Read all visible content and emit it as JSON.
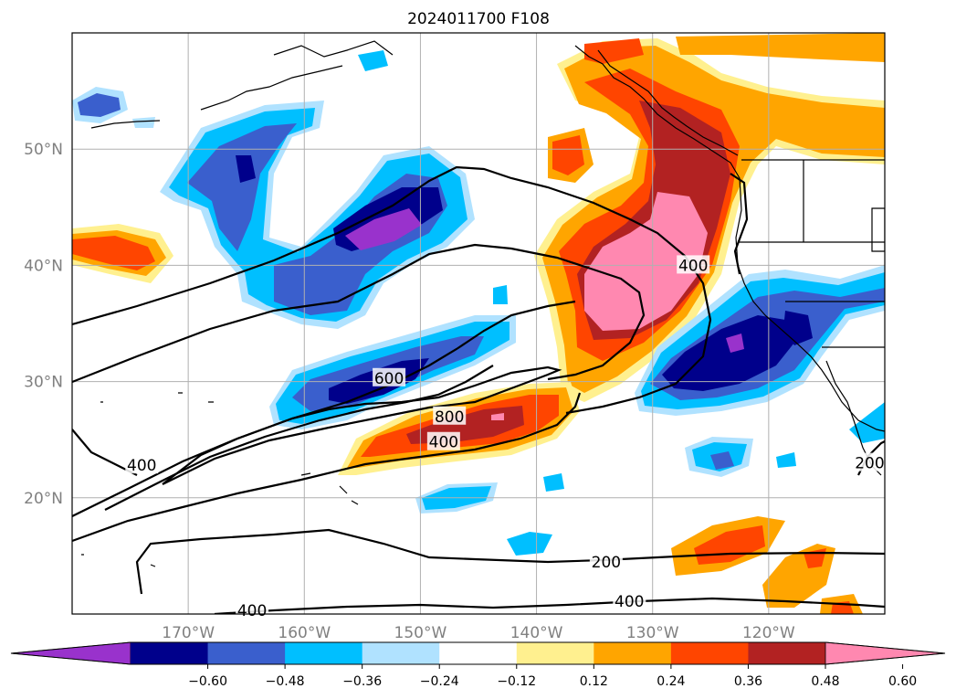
{
  "title": "2024011700 F108",
  "map": {
    "lon_range": [
      -180,
      -110
    ],
    "lat_range": [
      10,
      60
    ],
    "gridlines": true,
    "lon_ticks": [
      {
        "lon": -170,
        "label": "170°W"
      },
      {
        "lon": -160,
        "label": "160°W"
      },
      {
        "lon": -150,
        "label": "150°W"
      },
      {
        "lon": -140,
        "label": "140°W"
      },
      {
        "lon": -130,
        "label": "130°W"
      },
      {
        "lon": -120,
        "label": "120°W"
      }
    ],
    "lat_ticks": [
      {
        "lat": 20,
        "label": "20°N"
      },
      {
        "lat": 30,
        "label": "30°N"
      },
      {
        "lat": 40,
        "label": "40°N"
      },
      {
        "lat": 50,
        "label": "50°N"
      }
    ],
    "contour_labels": [
      {
        "text": "400",
        "lon": -126.5,
        "lat": 40.0
      },
      {
        "text": "600",
        "lon": -152.7,
        "lat": 30.3
      },
      {
        "text": "800",
        "lon": -147.5,
        "lat": 27.0
      },
      {
        "text": "400",
        "lon": -148.0,
        "lat": 24.8
      },
      {
        "text": "400",
        "lon": -174.0,
        "lat": 22.8
      },
      {
        "text": "200",
        "lon": -134.0,
        "lat": 14.5
      },
      {
        "text": "400",
        "lon": -132.0,
        "lat": 11.1
      },
      {
        "text": "400",
        "lon": -164.5,
        "lat": 10.3
      },
      {
        "text": "200",
        "lon": -111.3,
        "lat": 23.0
      }
    ]
  },
  "colorbar": {
    "colors": [
      "#9932cc",
      "#00008b",
      "#3a5fcd",
      "#00bfff",
      "#b0e2ff",
      "#ffffff",
      "#fff08f",
      "#ffa500",
      "#ff4500",
      "#b22222",
      "#ff88b0"
    ],
    "tick_labels": [
      "−0.60",
      "−0.48",
      "−0.36",
      "−0.24",
      "−0.12",
      "0.12",
      "0.24",
      "0.36",
      "0.48",
      "0.60"
    ]
  }
}
